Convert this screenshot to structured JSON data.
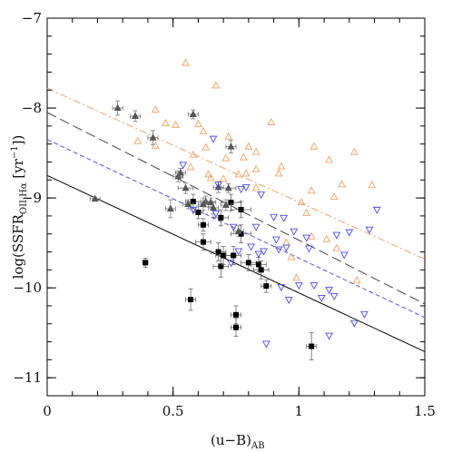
{
  "chart_data": {
    "type": "scatter",
    "title": "",
    "xlabel": {
      "main": "(u−B)",
      "sub": "AB"
    },
    "ylabel": {
      "main": "log(SSFR",
      "sub": "OII,Hα",
      "tail": " [yr",
      "sup": "−1",
      "end": "])"
    },
    "xlim": [
      0,
      1.5
    ],
    "ylim": [
      -11.2,
      -7
    ],
    "x_ticks": [
      0,
      0.5,
      1,
      1.5
    ],
    "x_tick_labels": [
      "0",
      "0.5",
      "1",
      "1.5"
    ],
    "y_ticks": [
      -11,
      -10,
      -9,
      -8,
      -7
    ],
    "y_tick_labels": [
      "−11",
      "−10",
      "−9",
      "−8",
      "−7"
    ],
    "grid": false,
    "colors": {
      "black_squares": "#000000",
      "grey_triangles": "#555555",
      "orange_triangles": "#f0a060",
      "blue_triangles": "#4a4af0",
      "orange_line": "#f0a060",
      "blue_line": "#5050e0",
      "black_dashed": "#444444",
      "black_solid": "#000000"
    },
    "lines": [
      {
        "style": "dashdot",
        "color_key": "orange_line",
        "x": [
          0,
          1.5
        ],
        "y": [
          -7.78,
          -9.68
        ]
      },
      {
        "style": "longdash",
        "color_key": "black_dashed",
        "x": [
          0,
          1.5
        ],
        "y": [
          -8.05,
          -10.18
        ]
      },
      {
        "style": "dashed",
        "color_key": "blue_line",
        "x": [
          0,
          1.5
        ],
        "y": [
          -8.35,
          -10.33
        ]
      },
      {
        "style": "solid",
        "color_key": "black_solid",
        "x": [
          0,
          1.5
        ],
        "y": [
          -8.75,
          -10.71
        ]
      }
    ],
    "series": [
      {
        "marker": "filled-square",
        "color_key": "black_squares",
        "points": [
          [
            0.39,
            -9.72,
            0.01,
            0.05
          ],
          [
            0.57,
            -10.13,
            0.02,
            0.12
          ],
          [
            0.58,
            -9.04,
            0.03,
            0.08
          ],
          [
            0.6,
            -9.16,
            0.02,
            0.07
          ],
          [
            0.62,
            -9.3,
            0.02,
            0.07
          ],
          [
            0.62,
            -9.49,
            0.03,
            0.09
          ],
          [
            0.68,
            -9.6,
            0.03,
            0.1
          ],
          [
            0.69,
            -9.22,
            0.03,
            0.09
          ],
          [
            0.69,
            -9.76,
            0.03,
            0.12
          ],
          [
            0.7,
            -9.64,
            0.03,
            0.1
          ],
          [
            0.73,
            -9.05,
            0.04,
            0.09
          ],
          [
            0.74,
            -9.64,
            0.03,
            0.1
          ],
          [
            0.75,
            -10.3,
            0.02,
            0.1
          ],
          [
            0.75,
            -10.44,
            0.02,
            0.1
          ],
          [
            0.77,
            -9.13,
            0.04,
            0.09
          ],
          [
            0.77,
            -9.4,
            0.04,
            0.1
          ],
          [
            0.8,
            -9.72,
            0.03,
            0.09
          ],
          [
            0.84,
            -9.74,
            0.03,
            0.08
          ],
          [
            0.85,
            -9.8,
            0.03,
            0.1
          ],
          [
            0.87,
            -9.98,
            0.02,
            0.07
          ],
          [
            1.05,
            -10.65,
            0.02,
            0.15
          ]
        ]
      },
      {
        "marker": "filled-triangle-up",
        "color_key": "grey_triangles",
        "points": [
          [
            0.19,
            -9.01,
            0.02,
            0.02
          ],
          [
            0.28,
            -8.0,
            0.02,
            0.08
          ],
          [
            0.35,
            -8.09,
            0.02,
            0.06
          ],
          [
            0.42,
            -8.33,
            0.02,
            0.08
          ],
          [
            0.49,
            -9.12,
            0.02,
            0.1
          ],
          [
            0.52,
            -8.76,
            0.02,
            0.06
          ],
          [
            0.53,
            -8.72,
            0.02,
            0.05
          ],
          [
            0.55,
            -8.89,
            0.03,
            0.06
          ],
          [
            0.56,
            -9.07,
            0.02,
            0.05
          ],
          [
            0.58,
            -8.07,
            0.02,
            0.05
          ],
          [
            0.62,
            -9.07,
            0.02,
            0.07
          ],
          [
            0.63,
            -9.04,
            0.02,
            0.06
          ],
          [
            0.65,
            -9.05,
            0.02,
            0.05
          ],
          [
            0.68,
            -8.88,
            0.02,
            0.06
          ],
          [
            0.71,
            -9.08,
            0.02,
            0.06
          ],
          [
            0.72,
            -8.89,
            0.03,
            0.05
          ],
          [
            0.73,
            -8.43,
            0.02,
            0.07
          ],
          [
            0.76,
            -9.37,
            0.02,
            0.06
          ],
          [
            0.66,
            -9.11,
            0.02,
            0.07
          ]
        ]
      },
      {
        "marker": "open-triangle-up",
        "color_key": "orange_triangles",
        "points": [
          [
            0.36,
            -8.37
          ],
          [
            0.43,
            -8.02
          ],
          [
            0.43,
            -8.42
          ],
          [
            0.47,
            -8.17
          ],
          [
            0.51,
            -8.19
          ],
          [
            0.55,
            -7.5
          ],
          [
            0.57,
            -8.66
          ],
          [
            0.58,
            -8.52
          ],
          [
            0.6,
            -8.18
          ],
          [
            0.62,
            -8.26
          ],
          [
            0.63,
            -8.44
          ],
          [
            0.64,
            -8.74
          ],
          [
            0.65,
            -8.78
          ],
          [
            0.67,
            -7.75
          ],
          [
            0.7,
            -8.79
          ],
          [
            0.71,
            -8.56
          ],
          [
            0.72,
            -8.32
          ],
          [
            0.76,
            -8.74
          ],
          [
            0.78,
            -8.55
          ],
          [
            0.79,
            -8.73
          ],
          [
            0.8,
            -8.43
          ],
          [
            0.83,
            -8.49
          ],
          [
            0.83,
            -8.68
          ],
          [
            0.83,
            -8.89
          ],
          [
            0.89,
            -8.16
          ],
          [
            0.92,
            -8.73
          ],
          [
            0.93,
            -8.65
          ],
          [
            0.95,
            -9.5
          ],
          [
            0.97,
            -9.66
          ],
          [
            0.99,
            -9.89
          ],
          [
            1.01,
            -9.05
          ],
          [
            1.03,
            -9.17
          ],
          [
            1.05,
            -8.92
          ],
          [
            1.05,
            -9.43
          ],
          [
            1.06,
            -8.43
          ],
          [
            1.11,
            -9.46
          ],
          [
            1.12,
            -8.58
          ],
          [
            1.14,
            -8.99
          ],
          [
            1.15,
            -9.56
          ],
          [
            1.17,
            -8.85
          ],
          [
            1.22,
            -8.49
          ],
          [
            1.23,
            -9.92
          ],
          [
            1.29,
            -8.86
          ]
        ]
      },
      {
        "marker": "open-triangle-down",
        "color_key": "blue_triangles",
        "points": [
          [
            0.54,
            -8.63
          ],
          [
            0.58,
            -9.13
          ],
          [
            0.66,
            -8.34
          ],
          [
            0.67,
            -9.17
          ],
          [
            0.68,
            -8.85
          ],
          [
            0.73,
            -9.72
          ],
          [
            0.74,
            -9.32
          ],
          [
            0.76,
            -9.59
          ],
          [
            0.77,
            -8.9
          ],
          [
            0.79,
            -8.88
          ],
          [
            0.81,
            -9.54
          ],
          [
            0.83,
            -9.32
          ],
          [
            0.84,
            -9.62
          ],
          [
            0.85,
            -8.96
          ],
          [
            0.86,
            -9.59
          ],
          [
            0.87,
            -10.62
          ],
          [
            0.9,
            -9.21
          ],
          [
            0.91,
            -9.46
          ],
          [
            0.92,
            -9.57
          ],
          [
            0.93,
            -9.99
          ],
          [
            0.94,
            -9.22
          ],
          [
            0.95,
            -9.55
          ],
          [
            0.96,
            -10.13
          ],
          [
            0.98,
            -9.37
          ],
          [
            1.0,
            -9.97
          ],
          [
            1.03,
            -9.44
          ],
          [
            1.04,
            -9.56
          ],
          [
            1.06,
            -9.97
          ],
          [
            1.09,
            -10.11
          ],
          [
            1.12,
            -10.02
          ],
          [
            1.12,
            -10.53
          ],
          [
            1.14,
            -10.09
          ],
          [
            1.15,
            -9.41
          ],
          [
            1.18,
            -9.63
          ],
          [
            1.2,
            -9.38
          ],
          [
            1.22,
            -10.39
          ],
          [
            1.26,
            -10.29
          ],
          [
            1.28,
            -9.35
          ],
          [
            1.31,
            -9.13
          ]
        ]
      }
    ]
  }
}
